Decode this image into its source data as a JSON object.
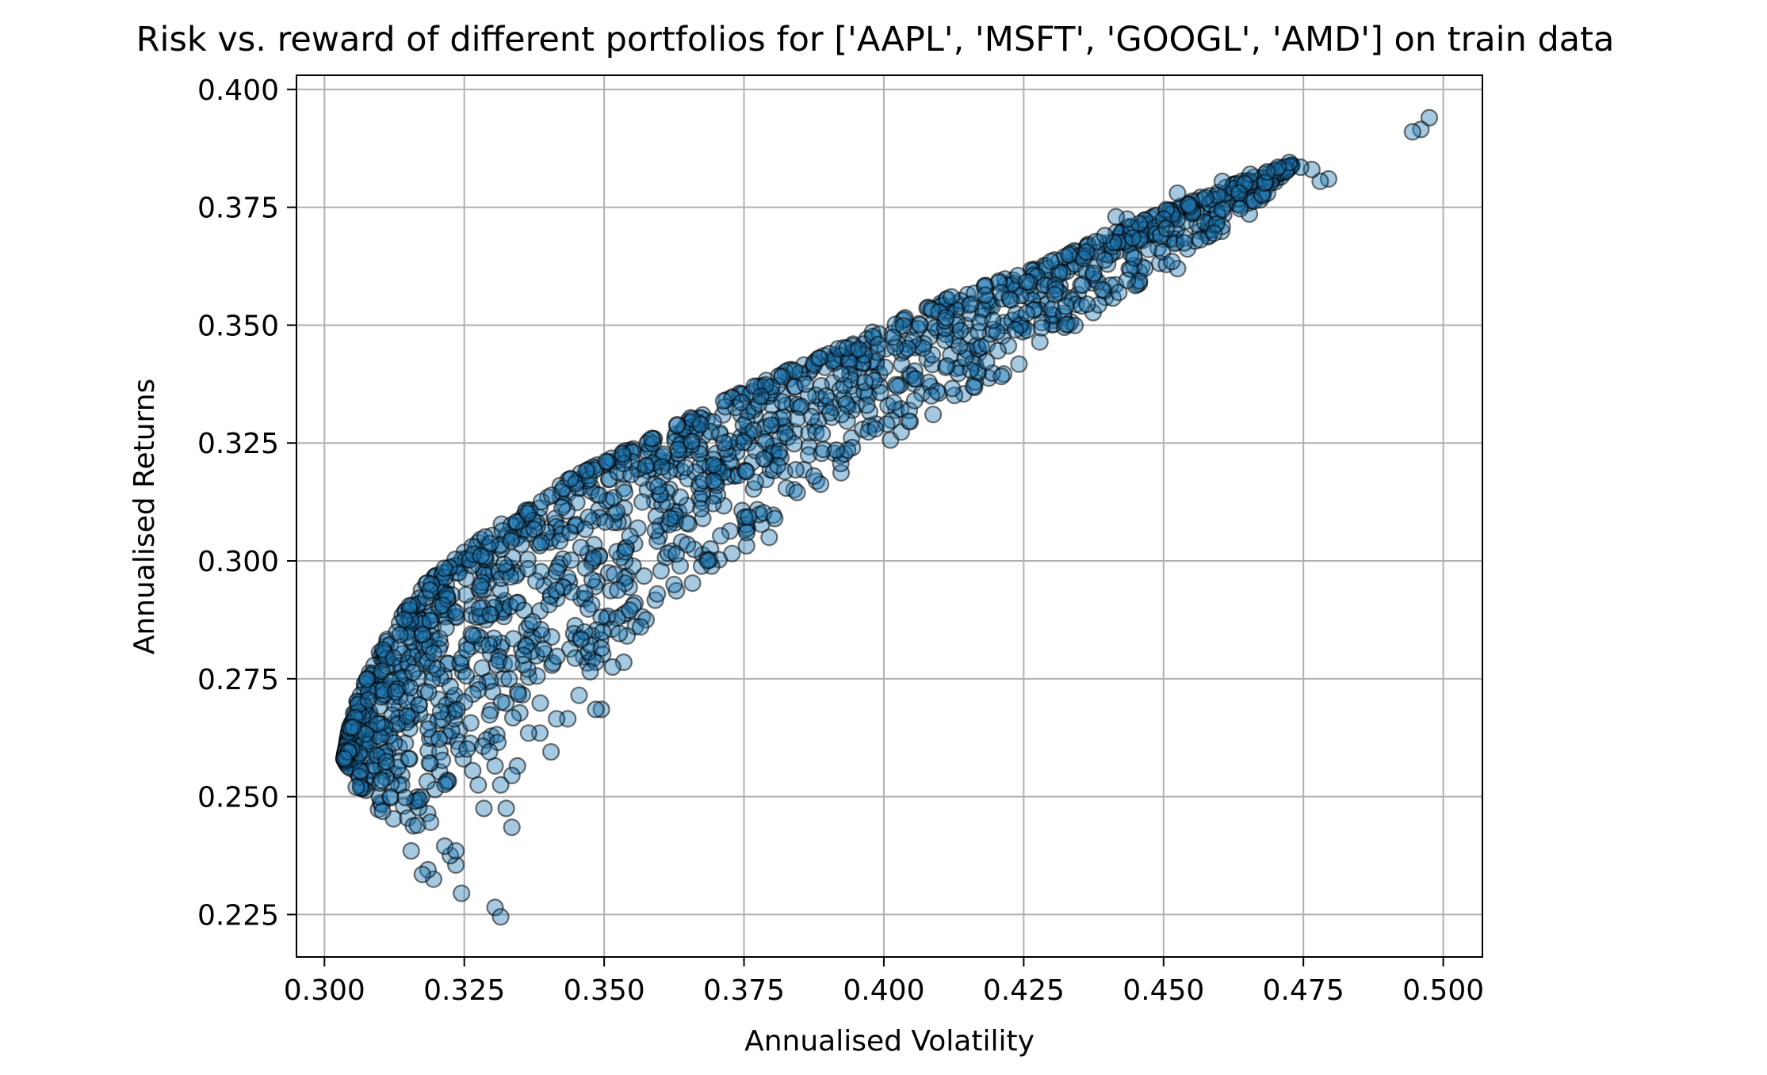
{
  "chart_data": {
    "type": "scatter",
    "title": "Risk vs. reward of different portfolios for ['AAPL', 'MSFT', 'GOOGL', 'AMD'] on train data",
    "xlabel": "Annualised Volatility",
    "ylabel": "Annualised Returns",
    "xlim": [
      0.295,
      0.507
    ],
    "ylim": [
      0.216,
      0.403
    ],
    "xticks": [
      "0.300",
      "0.325",
      "0.350",
      "0.375",
      "0.400",
      "0.425",
      "0.450",
      "0.475",
      "0.500"
    ],
    "yticks": [
      "0.225",
      "0.250",
      "0.275",
      "0.300",
      "0.325",
      "0.350",
      "0.375",
      "0.400"
    ],
    "grid": true,
    "marker_color": "#1f77b4",
    "marker_alpha": 0.4,
    "marker_edge_color": "#000000",
    "frontier_upper": [
      [
        0.3035,
        0.258
      ],
      [
        0.3045,
        0.265
      ],
      [
        0.306,
        0.271
      ],
      [
        0.309,
        0.279
      ],
      [
        0.313,
        0.287
      ],
      [
        0.318,
        0.295
      ],
      [
        0.325,
        0.302
      ],
      [
        0.333,
        0.309
      ],
      [
        0.343,
        0.317
      ],
      [
        0.355,
        0.324
      ],
      [
        0.368,
        0.332
      ],
      [
        0.382,
        0.34
      ],
      [
        0.397,
        0.348
      ],
      [
        0.412,
        0.356
      ],
      [
        0.427,
        0.362
      ],
      [
        0.44,
        0.369
      ],
      [
        0.452,
        0.375
      ],
      [
        0.465,
        0.381
      ],
      [
        0.473,
        0.384
      ]
    ],
    "frontier_lower": [
      [
        0.3035,
        0.258
      ],
      [
        0.306,
        0.251
      ],
      [
        0.31,
        0.246
      ],
      [
        0.315,
        0.243
      ],
      [
        0.319,
        0.244
      ],
      [
        0.323,
        0.25
      ],
      [
        0.328,
        0.258
      ],
      [
        0.335,
        0.266
      ],
      [
        0.343,
        0.274
      ],
      [
        0.352,
        0.282
      ],
      [
        0.362,
        0.291
      ],
      [
        0.372,
        0.3
      ],
      [
        0.382,
        0.309
      ],
      [
        0.392,
        0.318
      ],
      [
        0.402,
        0.326
      ],
      [
        0.413,
        0.334
      ],
      [
        0.424,
        0.341
      ],
      [
        0.435,
        0.35
      ],
      [
        0.445,
        0.358
      ],
      [
        0.455,
        0.366
      ],
      [
        0.465,
        0.373
      ],
      [
        0.473,
        0.384
      ]
    ],
    "scatter_points": [
      [
        0.4975,
        0.394
      ],
      [
        0.496,
        0.3915
      ],
      [
        0.4945,
        0.391
      ],
      [
        0.4795,
        0.381
      ],
      [
        0.478,
        0.3805
      ],
      [
        0.4765,
        0.383
      ],
      [
        0.4745,
        0.3835
      ],
      [
        0.4725,
        0.3845
      ],
      [
        0.4705,
        0.3835
      ],
      [
        0.4685,
        0.3825
      ],
      [
        0.4655,
        0.382
      ],
      [
        0.4645,
        0.38
      ],
      [
        0.4635,
        0.378
      ],
      [
        0.4605,
        0.3805
      ],
      [
        0.4605,
        0.3745
      ],
      [
        0.4595,
        0.3715
      ],
      [
        0.459,
        0.3695
      ],
      [
        0.4575,
        0.377
      ],
      [
        0.4545,
        0.3755
      ],
      [
        0.4525,
        0.378
      ],
      [
        0.4515,
        0.3735
      ],
      [
        0.4505,
        0.3745
      ],
      [
        0.45,
        0.3725
      ],
      [
        0.4495,
        0.369
      ],
      [
        0.4525,
        0.362
      ],
      [
        0.4515,
        0.3635
      ],
      [
        0.4505,
        0.3705
      ],
      [
        0.4445,
        0.3685
      ],
      [
        0.4435,
        0.3595
      ],
      [
        0.4435,
        0.3725
      ],
      [
        0.4415,
        0.373
      ],
      [
        0.4395,
        0.369
      ],
      [
        0.4375,
        0.361
      ],
      [
        0.4355,
        0.3585
      ],
      [
        0.4325,
        0.354
      ],
      [
        0.4305,
        0.3565
      ],
      [
        0.4245,
        0.35
      ],
      [
        0.4235,
        0.349
      ],
      [
        0.4255,
        0.3525
      ],
      [
        0.4225,
        0.3555
      ],
      [
        0.4195,
        0.351
      ],
      [
        0.4155,
        0.3405
      ],
      [
        0.4145,
        0.343
      ],
      [
        0.4135,
        0.3455
      ],
      [
        0.4095,
        0.336
      ],
      [
        0.4085,
        0.335
      ],
      [
        0.4055,
        0.334
      ],
      [
        0.4005,
        0.329
      ],
      [
        0.3985,
        0.328
      ],
      [
        0.3935,
        0.3235
      ],
      [
        0.3915,
        0.3235
      ],
      [
        0.3875,
        0.318
      ],
      [
        0.3845,
        0.3145
      ],
      [
        0.3805,
        0.309
      ],
      [
        0.3795,
        0.305
      ],
      [
        0.3755,
        0.306
      ],
      [
        0.3685,
        0.3
      ],
      [
        0.3625,
        0.295
      ],
      [
        0.3595,
        0.293
      ],
      [
        0.3575,
        0.2875
      ],
      [
        0.3565,
        0.286
      ],
      [
        0.3535,
        0.2785
      ],
      [
        0.3515,
        0.2775
      ],
      [
        0.3495,
        0.2815
      ],
      [
        0.3485,
        0.2785
      ],
      [
        0.3475,
        0.2765
      ],
      [
        0.3495,
        0.2685
      ],
      [
        0.3485,
        0.2685
      ],
      [
        0.3455,
        0.2715
      ],
      [
        0.3435,
        0.2665
      ],
      [
        0.3415,
        0.2665
      ],
      [
        0.3405,
        0.2595
      ],
      [
        0.3385,
        0.2635
      ],
      [
        0.3365,
        0.2635
      ],
      [
        0.3345,
        0.2565
      ],
      [
        0.3335,
        0.2545
      ],
      [
        0.3325,
        0.2475
      ],
      [
        0.3335,
        0.2435
      ],
      [
        0.3315,
        0.2525
      ],
      [
        0.3305,
        0.2565
      ],
      [
        0.3295,
        0.2595
      ],
      [
        0.3305,
        0.2265
      ],
      [
        0.3315,
        0.2245
      ],
      [
        0.3245,
        0.2295
      ],
      [
        0.3235,
        0.2355
      ],
      [
        0.3225,
        0.2375
      ],
      [
        0.3215,
        0.2395
      ],
      [
        0.3235,
        0.2385
      ],
      [
        0.3275,
        0.2525
      ],
      [
        0.3285,
        0.2475
      ],
      [
        0.3265,
        0.2555
      ],
      [
        0.3195,
        0.2325
      ],
      [
        0.3185,
        0.2345
      ],
      [
        0.3175,
        0.2335
      ],
      [
        0.3155,
        0.2385
      ]
    ]
  }
}
